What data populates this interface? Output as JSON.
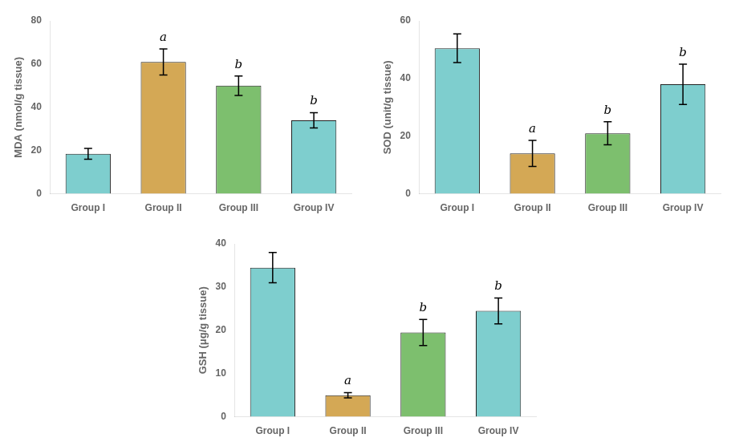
{
  "chart_data": [
    {
      "type": "bar",
      "categories": [
        "Group I",
        "Group II",
        "Group III",
        "Group IV"
      ],
      "values": [
        18.5,
        61.0,
        50.0,
        34.0
      ],
      "errors": [
        2.5,
        6.0,
        4.5,
        3.5
      ],
      "ylabel": "MDA (nmol/g tissue)",
      "ylim": [
        0,
        80
      ],
      "yticks": [
        0,
        20,
        40,
        60,
        80
      ],
      "annotations": [
        null,
        "a",
        "b",
        "b"
      ],
      "colors": [
        "#7ecece",
        "#d4a855",
        "#7dbf6e",
        "#7ecece"
      ],
      "grid": false
    },
    {
      "type": "bar",
      "categories": [
        "Group I",
        "Group II",
        "Group III",
        "Group IV"
      ],
      "values": [
        50.5,
        14.0,
        21.0,
        38.0
      ],
      "errors": [
        5.0,
        4.5,
        4.0,
        7.0
      ],
      "ylabel": "SOD (unit/g tissue)",
      "ylim": [
        0,
        60
      ],
      "yticks": [
        0,
        20,
        40,
        60
      ],
      "annotations": [
        null,
        "a",
        "b",
        "b"
      ],
      "colors": [
        "#7ecece",
        "#d4a855",
        "#7dbf6e",
        "#7ecece"
      ],
      "grid": false
    },
    {
      "type": "bar",
      "categories": [
        "Group I",
        "Group II",
        "Group III",
        "Group IV"
      ],
      "values": [
        34.5,
        5.0,
        19.5,
        24.5
      ],
      "errors": [
        3.5,
        0.6,
        3.0,
        3.0
      ],
      "ylabel": "GSH (μg/g tissue)",
      "ylim": [
        0,
        40
      ],
      "yticks": [
        0,
        10,
        20,
        30,
        40
      ],
      "annotations": [
        null,
        "a",
        "b",
        "b"
      ],
      "colors": [
        "#7ecece",
        "#d4a855",
        "#7dbf6e",
        "#7ecece"
      ],
      "grid": false
    }
  ]
}
